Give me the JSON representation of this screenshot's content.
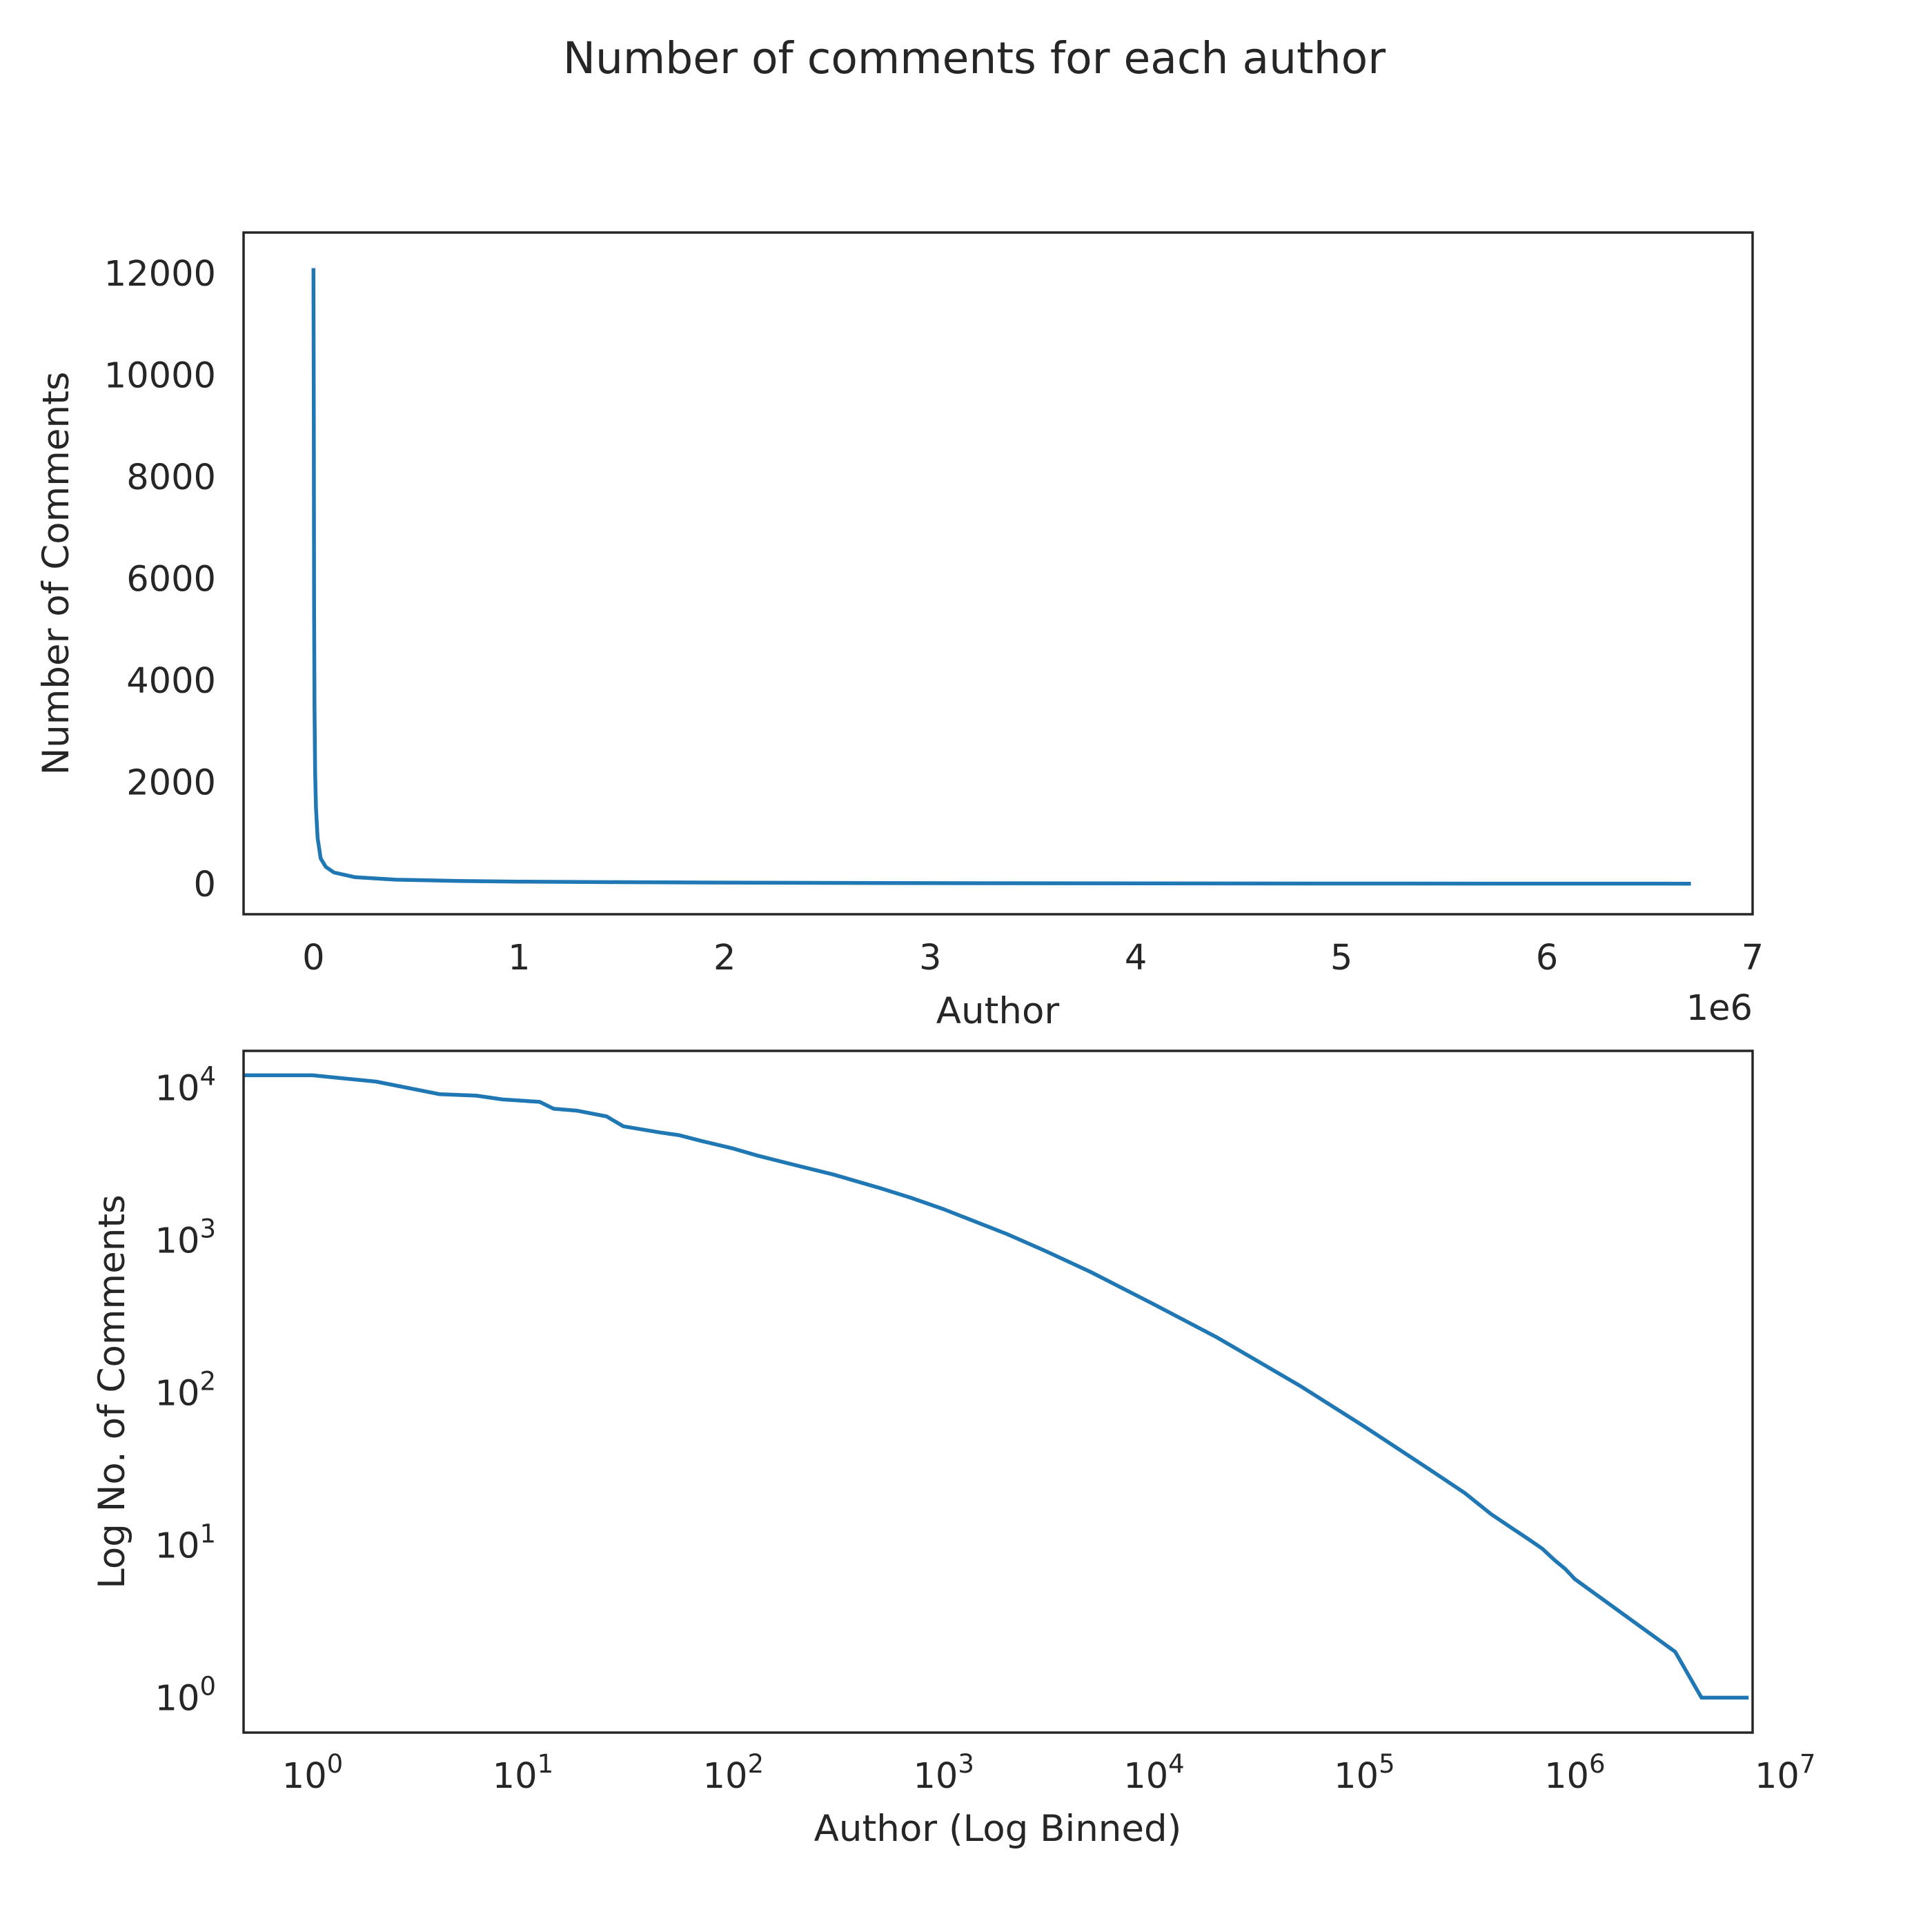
{
  "chart_data": {
    "title": "Number of comments for each author",
    "charts": [
      {
        "id": "linear",
        "type": "line",
        "xlabel": "Author",
        "ylabel": "Number of Comments",
        "x_offset_label": "1e6",
        "xlim": [
          -340000,
          7000000
        ],
        "ylim": [
          -600,
          12800
        ],
        "x_scale": "linear",
        "y_scale": "linear",
        "grid": false,
        "x_ticks": [
          0,
          1000000,
          2000000,
          3000000,
          4000000,
          5000000,
          6000000,
          7000000
        ],
        "x_tick_labels": [
          "0",
          "1",
          "2",
          "3",
          "4",
          "5",
          "6",
          "7"
        ],
        "y_ticks": [
          0,
          2000,
          4000,
          6000,
          8000,
          10000,
          12000
        ],
        "y_tick_labels": [
          "0",
          "2000",
          "4000",
          "6000",
          "8000",
          "10000",
          "12000"
        ],
        "series": [
          {
            "color": "#1f77b4",
            "points": [
              [
                0,
                12100
              ],
              [
                1500,
                9000
              ],
              [
                3000,
                5500
              ],
              [
                5000,
                3500
              ],
              [
                8000,
                2200
              ],
              [
                12000,
                1500
              ],
              [
                20000,
                900
              ],
              [
                35000,
                500
              ],
              [
                60000,
                330
              ],
              [
                100000,
                220
              ],
              [
                200000,
                130
              ],
              [
                400000,
                80
              ],
              [
                700000,
                55
              ],
              [
                1000000,
                42
              ],
              [
                1500000,
                30
              ],
              [
                2000000,
                22
              ],
              [
                3000000,
                12
              ],
              [
                4000000,
                7
              ],
              [
                5000000,
                4
              ],
              [
                6000000,
                2
              ],
              [
                6700000,
                1
              ]
            ]
          }
        ]
      },
      {
        "id": "log",
        "type": "line",
        "xlabel": "Author (Log Binned)",
        "ylabel": "Log No. of Comments",
        "xlim": [
          0.47,
          7000000
        ],
        "ylim": [
          0.59,
          17500
        ],
        "x_scale": "log",
        "y_scale": "log",
        "grid": false,
        "x_ticks": [
          1,
          10,
          100,
          1000,
          10000,
          100000,
          1000000,
          10000000
        ],
        "x_tick_exponents": [
          "0",
          "1",
          "2",
          "3",
          "4",
          "5",
          "6",
          "7"
        ],
        "y_ticks": [
          1,
          10,
          100,
          1000,
          10000
        ],
        "y_tick_exponents": [
          "0",
          "1",
          "2",
          "3",
          "4"
        ],
        "tick_base": "10",
        "series": [
          {
            "color": "#1f77b4",
            "points": [
              [
                0.47,
                12100
              ],
              [
                1,
                12100
              ],
              [
                2,
                11000
              ],
              [
                4,
                9100
              ],
              [
                6,
                8900
              ],
              [
                8,
                8400
              ],
              [
                12,
                8100
              ],
              [
                14,
                7300
              ],
              [
                18,
                7100
              ],
              [
                25,
                6500
              ],
              [
                30,
                5600
              ],
              [
                45,
                5100
              ],
              [
                55,
                4900
              ],
              [
                70,
                4500
              ],
              [
                100,
                4000
              ],
              [
                130,
                3600
              ],
              [
                200,
                3100
              ],
              [
                300,
                2700
              ],
              [
                500,
                2200
              ],
              [
                700,
                1900
              ],
              [
                1000,
                1600
              ],
              [
                2000,
                1100
              ],
              [
                3000,
                860
              ],
              [
                5000,
                620
              ],
              [
                10000,
                380
              ],
              [
                20000,
                230
              ],
              [
                50000,
                110
              ],
              [
                100000,
                60
              ],
              [
                200000,
                32
              ],
              [
                300000,
                22
              ],
              [
                400000,
                16
              ],
              [
                500000,
                13
              ],
              [
                600000,
                11
              ],
              [
                700000,
                9.5
              ],
              [
                800000,
                8
              ],
              [
                900000,
                7
              ],
              [
                1000000,
                6
              ],
              [
                1200000,
                5
              ],
              [
                1500000,
                4
              ],
              [
                2000000,
                3
              ],
              [
                3000000,
                2
              ],
              [
                4000000,
                1
              ],
              [
                6700000,
                1
              ]
            ]
          }
        ]
      }
    ]
  }
}
